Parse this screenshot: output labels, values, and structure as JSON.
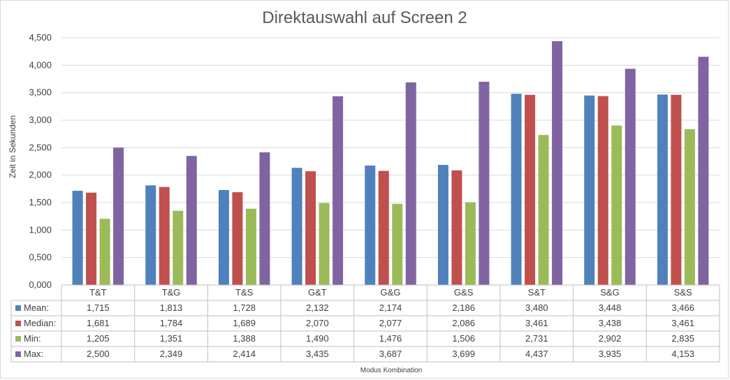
{
  "chart_data": {
    "type": "bar",
    "title": "Direktauswahl auf Screen 2",
    "xlabel": "Modus Kombination",
    "ylabel": "Zeit in Sekunden",
    "ylim": [
      0,
      4.5
    ],
    "yticks": [
      "0,000",
      "0,500",
      "1,000",
      "1,500",
      "2,000",
      "2,500",
      "3,000",
      "3,500",
      "4,000",
      "4,500"
    ],
    "grid": true,
    "legend": "data-table",
    "categories": [
      "T&T",
      "T&G",
      "T&S",
      "G&T",
      "G&G",
      "G&S",
      "S&T",
      "S&G",
      "S&S"
    ],
    "series": [
      {
        "name": "Mean:",
        "color": "#4f81bd",
        "values": [
          1.715,
          1.813,
          1.728,
          2.132,
          2.174,
          2.186,
          3.48,
          3.448,
          3.466
        ],
        "labels": [
          "1,715",
          "1,813",
          "1,728",
          "2,132",
          "2,174",
          "2,186",
          "3,480",
          "3,448",
          "3,466"
        ]
      },
      {
        "name": "Median:",
        "color": "#c0504d",
        "values": [
          1.681,
          1.784,
          1.689,
          2.07,
          2.077,
          2.086,
          3.461,
          3.438,
          3.461
        ],
        "labels": [
          "1,681",
          "1,784",
          "1,689",
          "2,070",
          "2,077",
          "2,086",
          "3,461",
          "3,438",
          "3,461"
        ]
      },
      {
        "name": "Min:",
        "color": "#9bbb59",
        "values": [
          1.205,
          1.351,
          1.388,
          1.49,
          1.476,
          1.506,
          2.731,
          2.902,
          2.835
        ],
        "labels": [
          "1,205",
          "1,351",
          "1,388",
          "1,490",
          "1,476",
          "1,506",
          "2,731",
          "2,902",
          "2,835"
        ]
      },
      {
        "name": "Max:",
        "color": "#8064a2",
        "values": [
          2.5,
          2.349,
          2.414,
          3.435,
          3.687,
          3.699,
          4.437,
          3.935,
          4.153
        ],
        "labels": [
          "2,500",
          "2,349",
          "2,414",
          "3,435",
          "3,687",
          "3,699",
          "4,437",
          "3,935",
          "4,153"
        ]
      }
    ]
  }
}
